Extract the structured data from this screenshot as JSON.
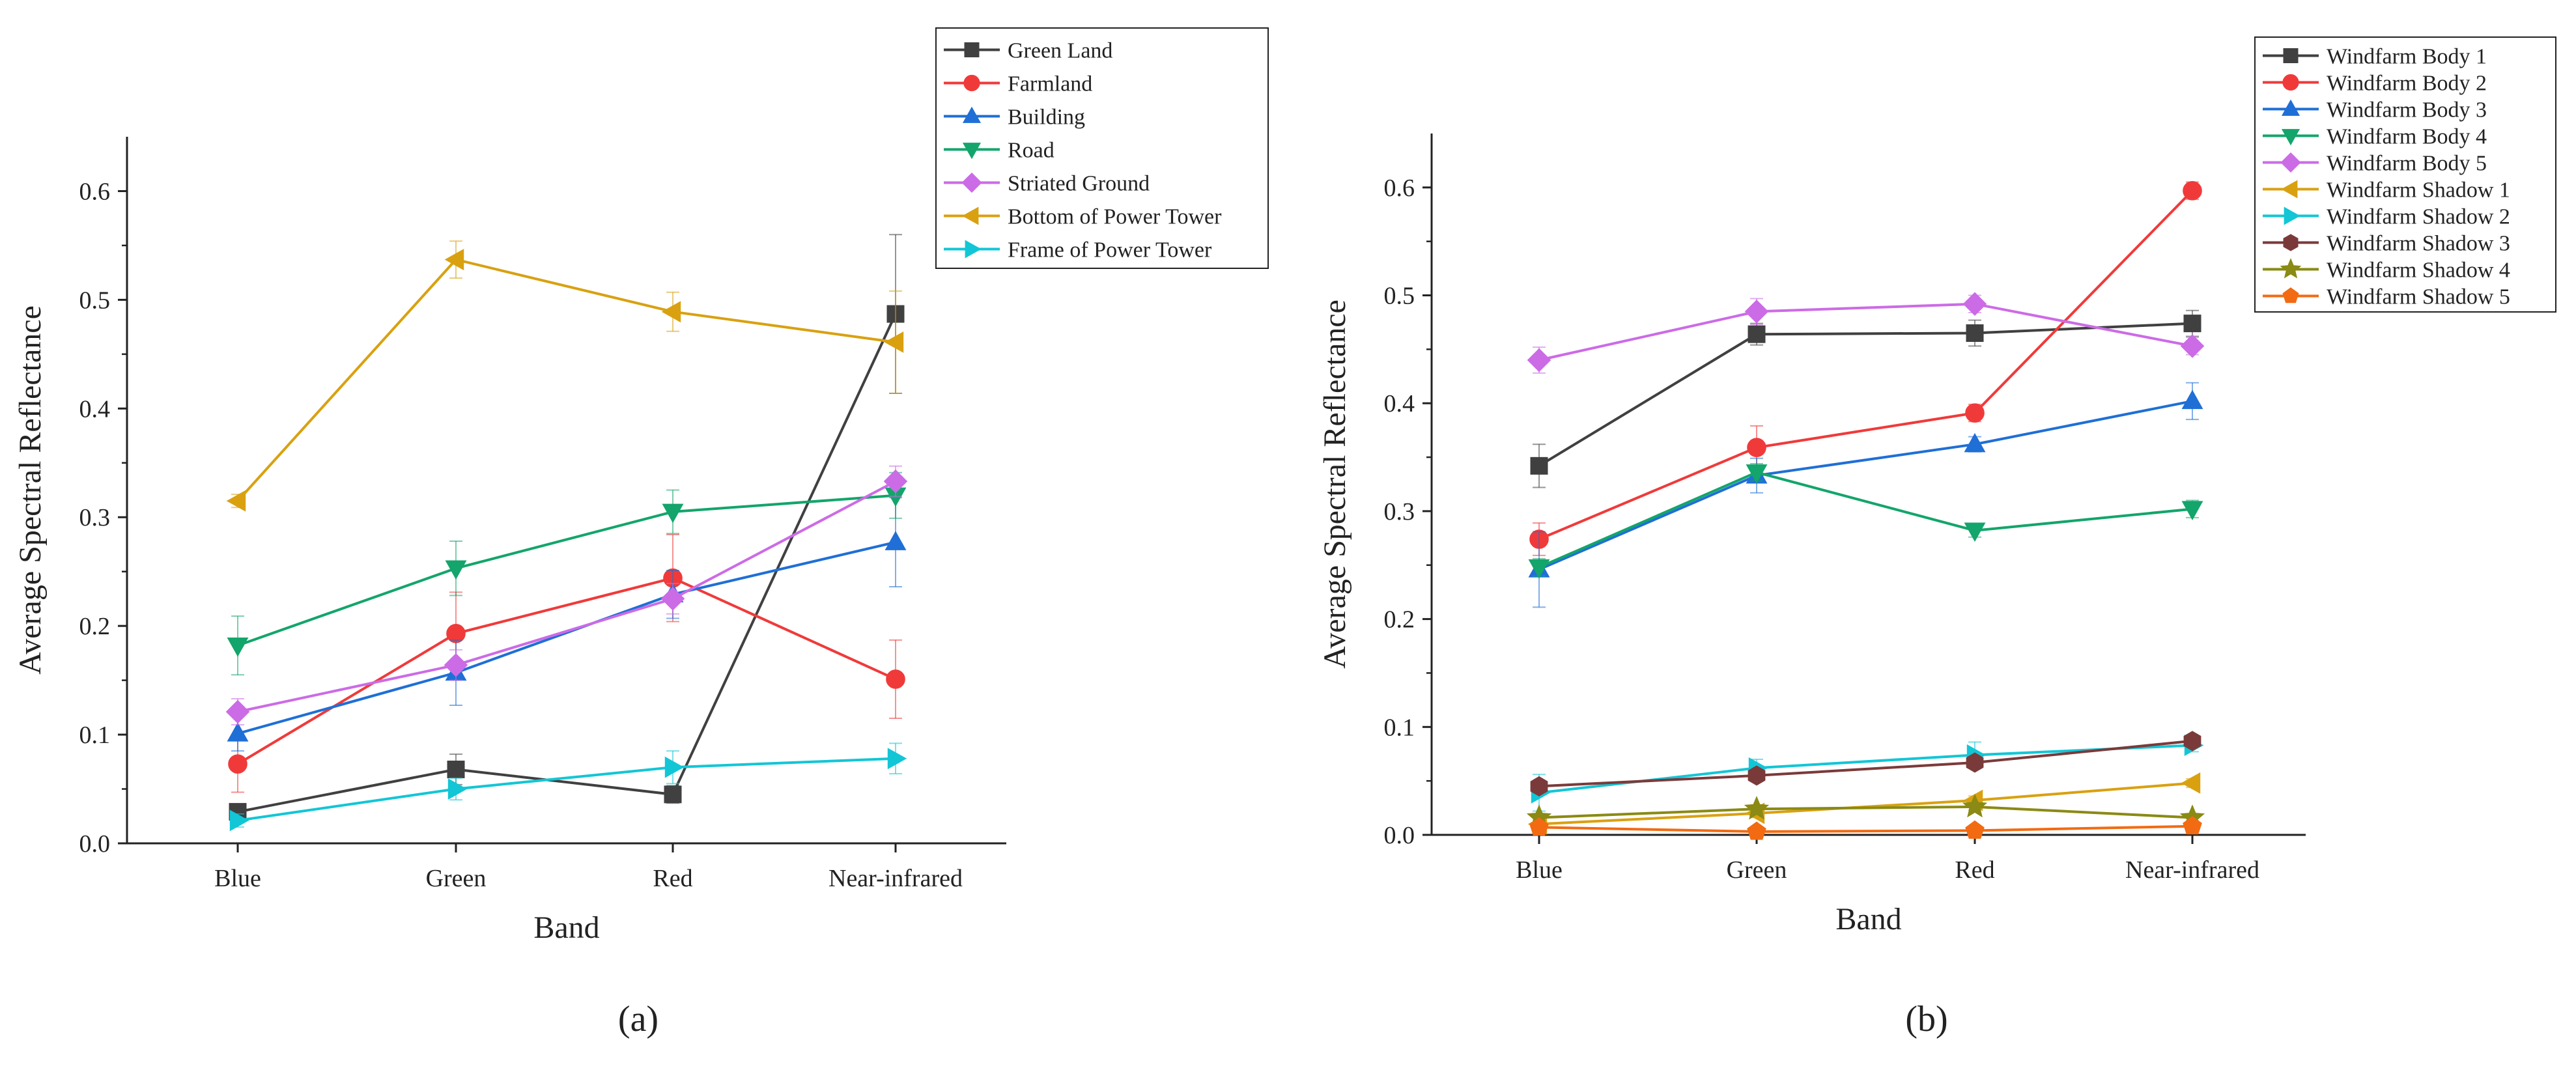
{
  "chart_data": [
    {
      "type": "line",
      "panel_label": "(a)",
      "xlabel": "Band",
      "ylabel": "Average Spectral Reflectance",
      "categories": [
        "Blue",
        "Green",
        "Red",
        "Near-infrared"
      ],
      "ylim": [
        0.0,
        0.65
      ],
      "yticks": [
        "0.0",
        "0.1",
        "0.2",
        "0.3",
        "0.4",
        "0.5",
        "0.6"
      ],
      "legend_position": "top-right",
      "series": [
        {
          "name": "Green Land",
          "color": "#404040",
          "marker": "square",
          "values": [
            0.029,
            0.068,
            0.045,
            0.487
          ],
          "errors": [
            0.006,
            0.014,
            0.008,
            0.073
          ]
        },
        {
          "name": "Farmland",
          "color": "#f03a3a",
          "marker": "circle",
          "values": [
            0.073,
            0.193,
            0.244,
            0.151
          ],
          "errors": [
            0.026,
            0.038,
            0.04,
            0.036
          ]
        },
        {
          "name": "Building",
          "color": "#1f6fd6",
          "marker": "triangle-up",
          "values": [
            0.101,
            0.157,
            0.229,
            0.277
          ],
          "errors": [
            0.016,
            0.03,
            0.022,
            0.041
          ]
        },
        {
          "name": "Road",
          "color": "#13a56b",
          "marker": "triangle-down",
          "values": [
            0.182,
            0.253,
            0.305,
            0.32
          ],
          "errors": [
            0.027,
            0.025,
            0.02,
            0.021
          ]
        },
        {
          "name": "Striated Ground",
          "color": "#cc6be6",
          "marker": "diamond",
          "values": [
            0.121,
            0.164,
            0.225,
            0.333
          ],
          "errors": [
            0.012,
            0.014,
            0.014,
            0.014
          ]
        },
        {
          "name": "Bottom of Power Tower",
          "color": "#d9a110",
          "marker": "triangle-left",
          "values": [
            0.315,
            0.537,
            0.489,
            0.461
          ],
          "errors": [
            0.006,
            0.017,
            0.018,
            0.047
          ]
        },
        {
          "name": "Frame of Power Tower",
          "color": "#12c6d6",
          "marker": "triangle-right",
          "values": [
            0.021,
            0.05,
            0.07,
            0.078
          ],
          "errors": [
            0.006,
            0.01,
            0.015,
            0.014
          ]
        }
      ]
    },
    {
      "type": "line",
      "panel_label": "(b)",
      "xlabel": "Band",
      "ylabel": "Average Spectral Reflectance",
      "categories": [
        "Blue",
        "Green",
        "Red",
        "Near-infrared"
      ],
      "ylim": [
        0.0,
        0.65
      ],
      "yticks": [
        "0.0",
        "0.1",
        "0.2",
        "0.3",
        "0.4",
        "0.5",
        "0.6"
      ],
      "legend_position": "top-right",
      "series": [
        {
          "name": "Windfarm Body 1",
          "color": "#404040",
          "marker": "square",
          "values": [
            0.342,
            0.464,
            0.465,
            0.474
          ],
          "errors": [
            0.02,
            0.01,
            0.012,
            0.012
          ]
        },
        {
          "name": "Windfarm Body 2",
          "color": "#f03a3a",
          "marker": "circle",
          "values": [
            0.274,
            0.359,
            0.391,
            0.597
          ],
          "errors": [
            0.015,
            0.02,
            0.008,
            0.008
          ]
        },
        {
          "name": "Windfarm Body 3",
          "color": "#1f6fd6",
          "marker": "triangle-up",
          "values": [
            0.246,
            0.333,
            0.362,
            0.402
          ],
          "errors": [
            0.035,
            0.016,
            0.007,
            0.017
          ]
        },
        {
          "name": "Windfarm Body 4",
          "color": "#13a56b",
          "marker": "triangle-down",
          "values": [
            0.248,
            0.336,
            0.282,
            0.302
          ],
          "errors": [
            0.008,
            0.008,
            0.006,
            0.008
          ]
        },
        {
          "name": "Windfarm Body 5",
          "color": "#cc6be6",
          "marker": "diamond",
          "values": [
            0.44,
            0.485,
            0.492,
            0.453
          ],
          "errors": [
            0.012,
            0.012,
            0.008,
            0.008
          ]
        },
        {
          "name": "Windfarm Shadow 1",
          "color": "#d9a110",
          "marker": "triangle-left",
          "values": [
            0.01,
            0.02,
            0.032,
            0.048
          ],
          "errors": [
            0.004,
            0.004,
            0.004,
            0.004
          ]
        },
        {
          "name": "Windfarm Shadow 2",
          "color": "#12c6d6",
          "marker": "triangle-right",
          "values": [
            0.039,
            0.062,
            0.074,
            0.083
          ],
          "errors": [
            0.017,
            0.008,
            0.012,
            0.006
          ]
        },
        {
          "name": "Windfarm Shadow 3",
          "color": "#7b3a3a",
          "marker": "hexagon",
          "values": [
            0.045,
            0.055,
            0.067,
            0.087
          ],
          "errors": [
            0.004,
            0.004,
            0.004,
            0.004
          ]
        },
        {
          "name": "Windfarm Shadow 4",
          "color": "#8a8a14",
          "marker": "star",
          "values": [
            0.016,
            0.024,
            0.026,
            0.016
          ],
          "errors": [
            0.003,
            0.003,
            0.003,
            0.003
          ]
        },
        {
          "name": "Windfarm Shadow 5",
          "color": "#f26b12",
          "marker": "pentagon",
          "values": [
            0.007,
            0.003,
            0.004,
            0.008
          ],
          "errors": [
            0.002,
            0.002,
            0.002,
            0.002
          ]
        }
      ]
    }
  ]
}
